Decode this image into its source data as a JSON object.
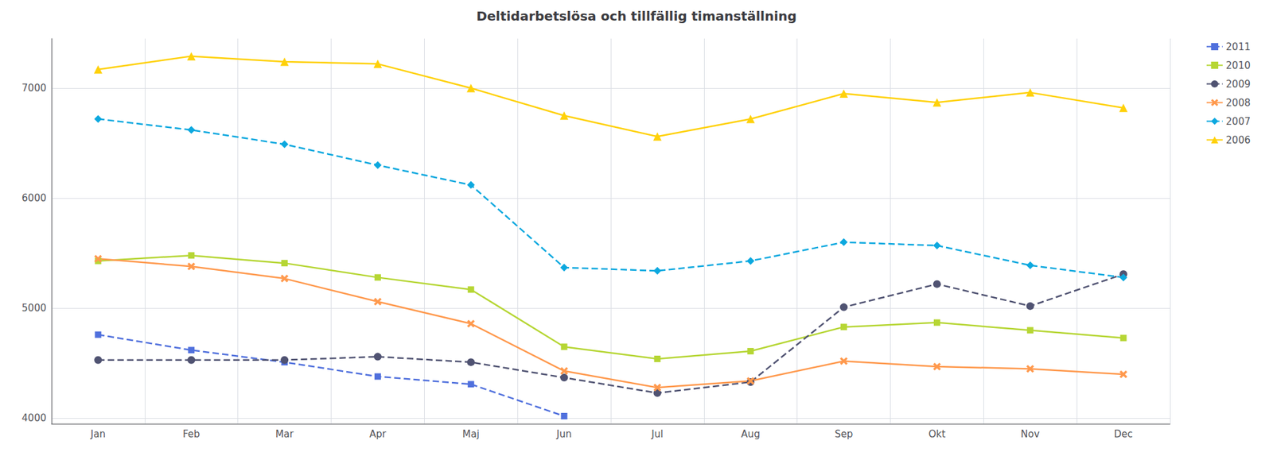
{
  "chart_data": {
    "type": "line",
    "title": "Deltidarbetslösa och tillfällig timanställning",
    "categories": [
      "Jan",
      "Feb",
      "Mar",
      "Apr",
      "Maj",
      "Jun",
      "Jul",
      "Aug",
      "Sep",
      "Okt",
      "Nov",
      "Dec"
    ],
    "series": [
      {
        "name": "2011",
        "values": [
          4760,
          4620,
          4510,
          4380,
          4310,
          4020,
          null,
          null,
          null,
          null,
          null,
          null
        ],
        "line_style": "dashed",
        "marker": "square"
      },
      {
        "name": "2010",
        "values": [
          5430,
          5480,
          5410,
          5280,
          5170,
          4650,
          4540,
          4610,
          4830,
          4870,
          4800,
          4730
        ],
        "line_style": "solid",
        "marker": "square"
      },
      {
        "name": "2009",
        "values": [
          4530,
          4530,
          4530,
          4560,
          4510,
          4370,
          4230,
          4330,
          5010,
          5220,
          5020,
          5310
        ],
        "line_style": "dashed",
        "marker": "circle"
      },
      {
        "name": "2008",
        "values": [
          5450,
          5380,
          5270,
          5060,
          4860,
          4430,
          4280,
          4340,
          4520,
          4470,
          4450,
          4400
        ],
        "line_style": "solid",
        "marker": "x"
      },
      {
        "name": "2007",
        "values": [
          6720,
          6620,
          6490,
          6300,
          6120,
          5370,
          5340,
          5430,
          5600,
          5570,
          5390,
          5280
        ],
        "line_style": "dashed",
        "marker": "diamond"
      },
      {
        "name": "2006",
        "values": [
          7170,
          7290,
          7240,
          7220,
          7000,
          6750,
          6560,
          6720,
          6950,
          6870,
          6960,
          6820
        ],
        "line_style": "solid",
        "marker": "triangle"
      }
    ],
    "ylim": [
      3950,
      7450
    ],
    "yticks": [
      4000,
      5000,
      6000,
      7000
    ],
    "grid": true,
    "legend": "right"
  }
}
